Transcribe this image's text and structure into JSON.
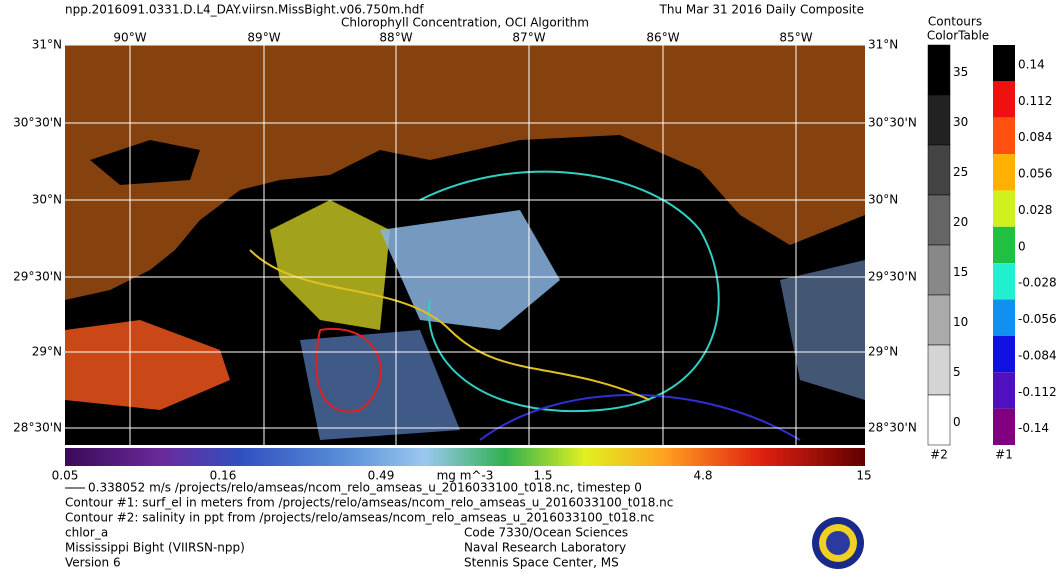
{
  "header": {
    "file": "npp.2016091.0331.D.L4_DAY.viirsn.MissBight.v06.750m.hdf",
    "title": "Chlorophyll Concentration, OCI Algorithm",
    "date": "Thu Mar 31 2016 Daily Composite"
  },
  "map": {
    "lon_labels": [
      "90°W",
      "89°W",
      "88°W",
      "87°W",
      "86°W",
      "85°W"
    ],
    "lat_labels": [
      "31°N",
      "30°30'N",
      "30°N",
      "29°30'N",
      "29°N",
      "28°30'N"
    ]
  },
  "colorbar": {
    "labels": [
      "0.05",
      "0.16",
      "0.49",
      "1.5",
      "4.8",
      "15"
    ],
    "unit": "mg m^-3"
  },
  "contour_legend": {
    "title": [
      "Contours",
      "ColorTable"
    ],
    "legend2": {
      "labels": [
        "35",
        "30",
        "25",
        "20",
        "15",
        "10",
        "5",
        "0"
      ],
      "tag": "#2"
    },
    "legend1": {
      "labels": [
        "0.14",
        "0.112",
        "0.084",
        "0.056",
        "0.028",
        "0",
        "-0.028",
        "-0.056",
        "-0.084",
        "-0.112",
        "-0.14"
      ],
      "tag": "#1"
    }
  },
  "footer": {
    "left": [
      "0.338052 m/s /projects/relo/amseas/ncom_relo_amseas_u_2016033100_t018.nc, timestep 0",
      "Contour #1: surf_el in meters from /projects/relo/amseas/ncom_relo_amseas_u_2016033100_t018.nc",
      "Contour #2: salinity in ppt from /projects/relo/amseas/ncom_relo_amseas_u_2016033100_t018.nc",
      "chlor_a",
      "Mississippi Bight (VIIRSN-npp)",
      "Version 6"
    ],
    "right": [
      "Code 7330/Ocean Sciences",
      "Naval Research Laboratory",
      "Stennis Space Center, MS"
    ]
  }
}
